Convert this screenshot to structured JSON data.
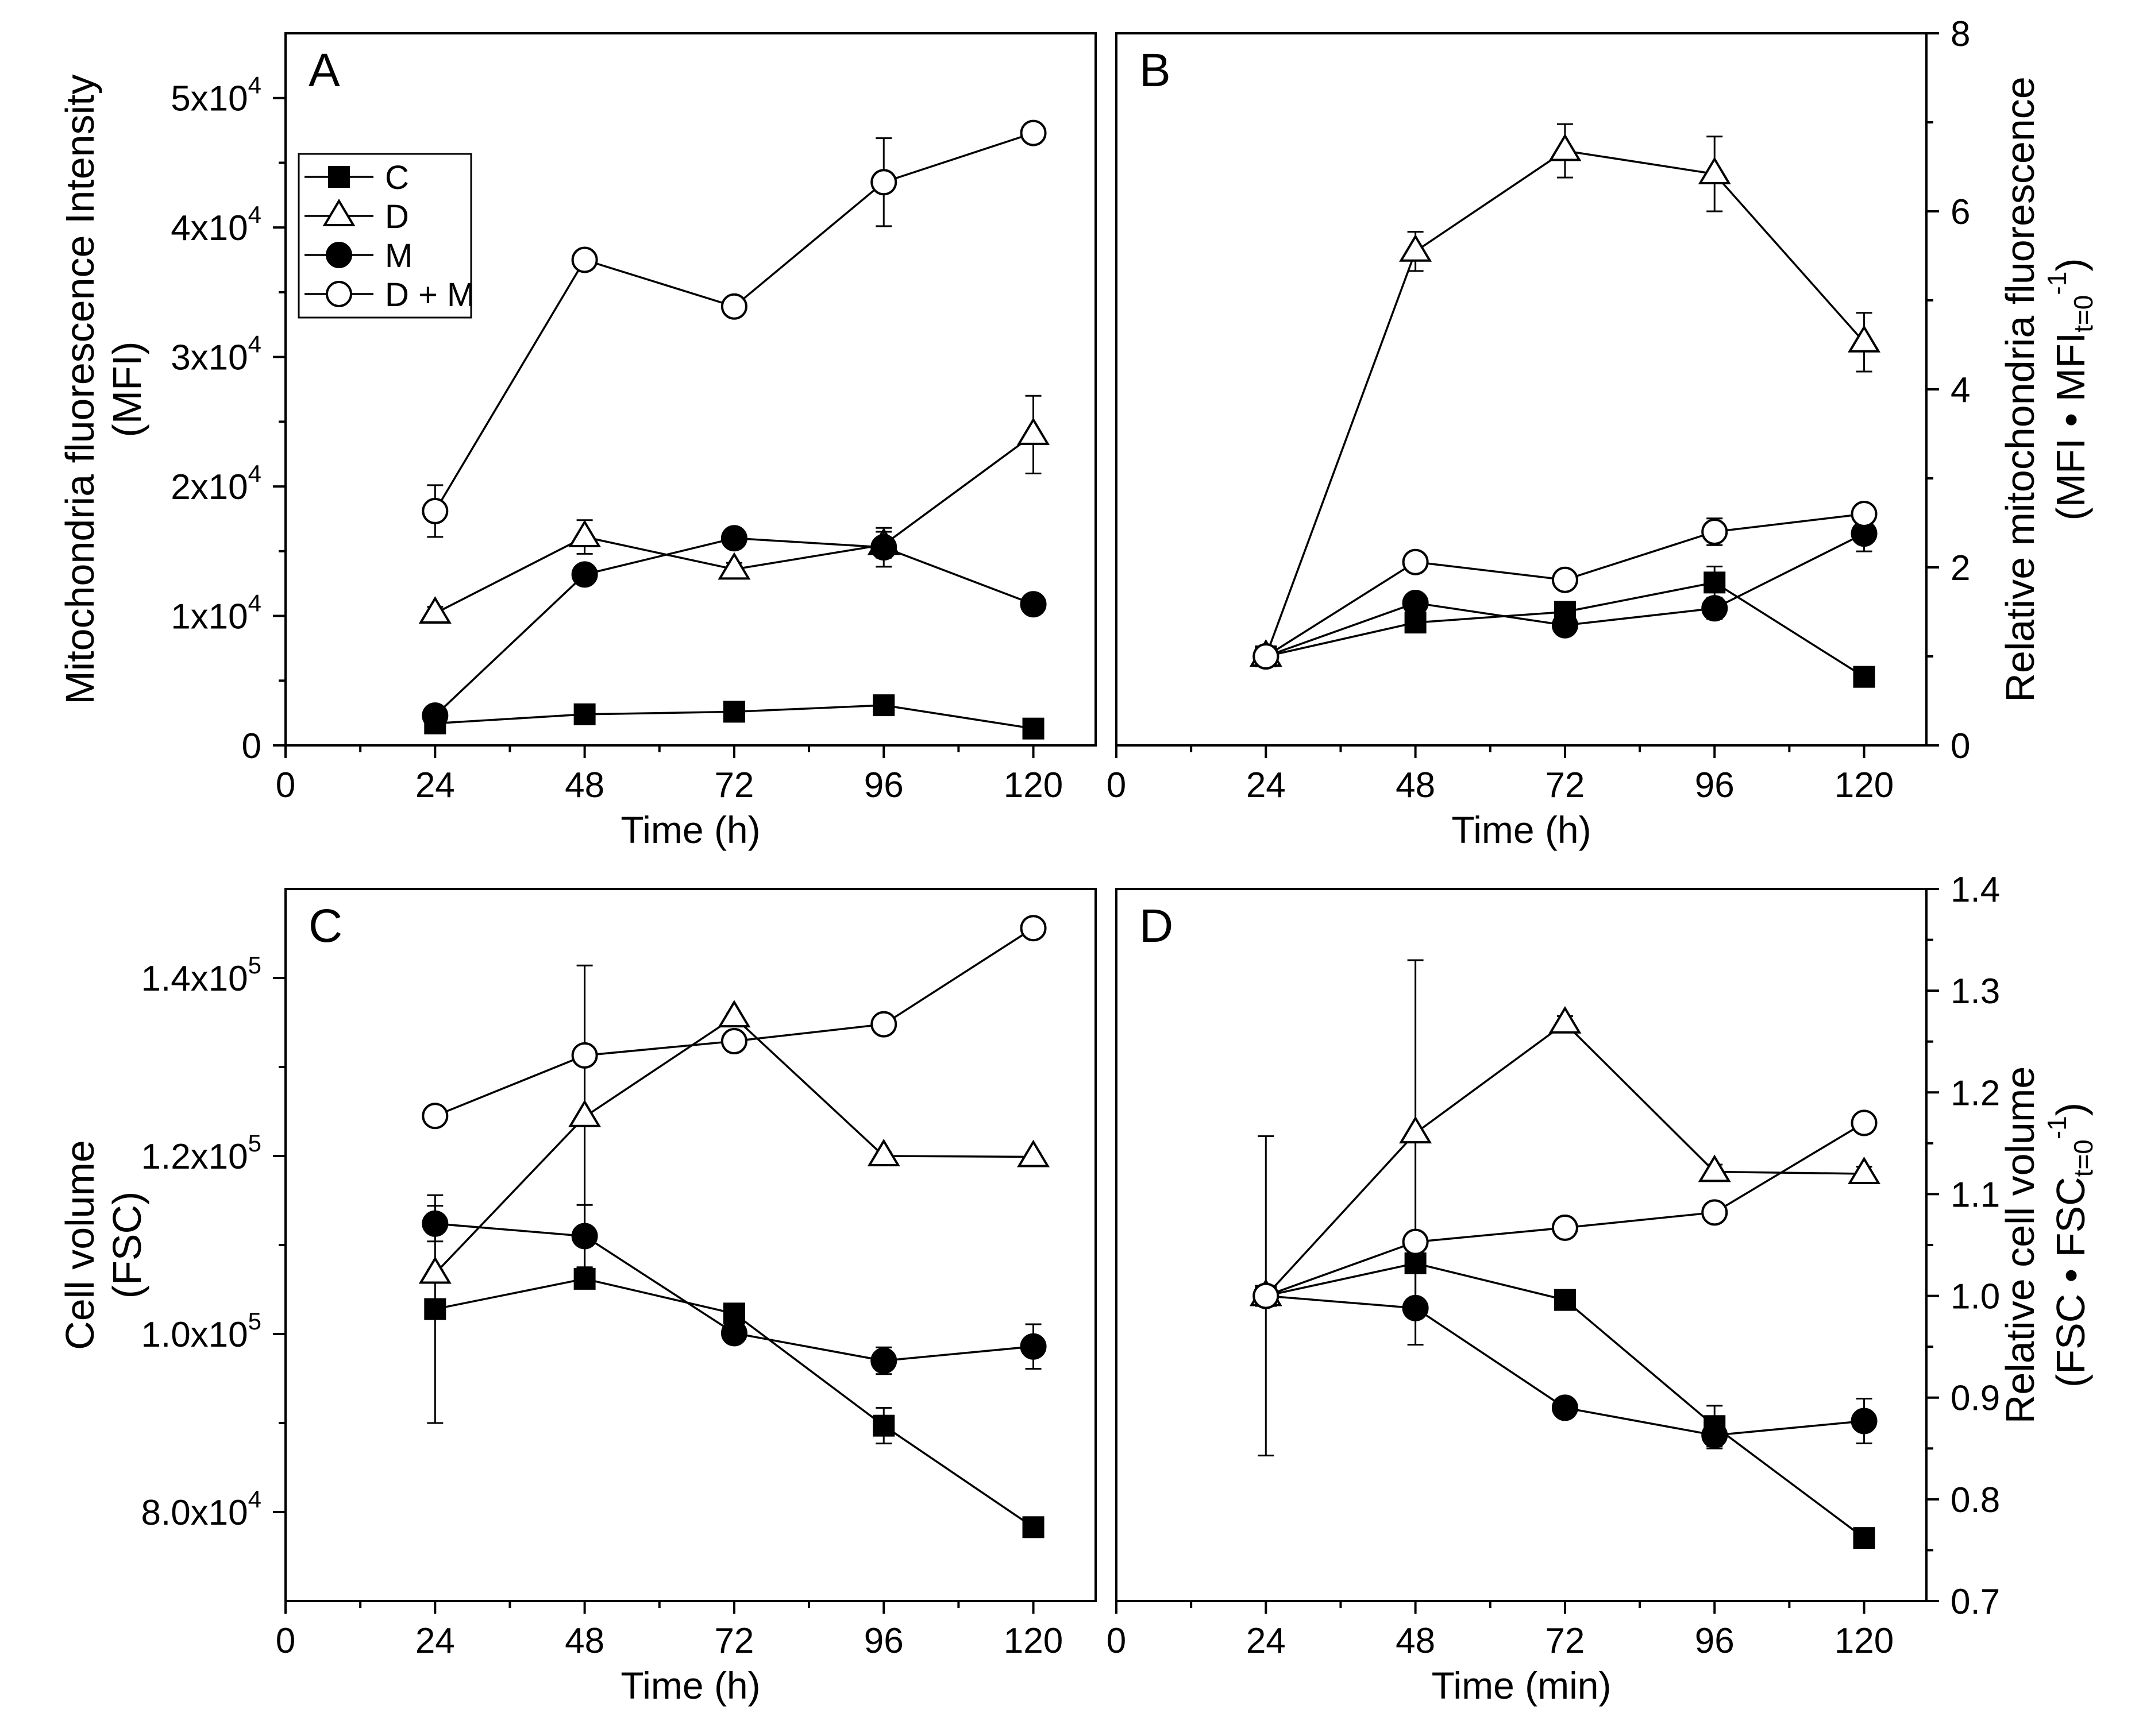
{
  "legend": {
    "entries": [
      {
        "key": "C",
        "label": "C",
        "marker": "square",
        "fill": "#000000"
      },
      {
        "key": "D",
        "label": "D",
        "marker": "triangle",
        "fill": "#ffffff"
      },
      {
        "key": "M",
        "label": "M",
        "marker": "circle",
        "fill": "#000000"
      },
      {
        "key": "DM",
        "label": "D + M",
        "marker": "circle",
        "fill": "#ffffff"
      }
    ]
  },
  "chart_data": [
    {
      "panel": "A",
      "type": "line",
      "title": "A",
      "xlabel": "Time (h)",
      "ylabel_lines": [
        "Mitochondria fluorescence Intensity",
        "(MFI)"
      ],
      "ylabel_side": "left",
      "xlim": [
        0,
        130
      ],
      "ylim": [
        0,
        55000
      ],
      "xticks": [
        0,
        24,
        48,
        72,
        96,
        120
      ],
      "yticks": [
        0,
        10000,
        20000,
        30000,
        40000,
        50000
      ],
      "ytick_labels": [
        {
          "mant": "0",
          "exp": ""
        },
        {
          "mant": "1x10",
          "exp": "4"
        },
        {
          "mant": "2x10",
          "exp": "4"
        },
        {
          "mant": "3x10",
          "exp": "4"
        },
        {
          "mant": "4x10",
          "exp": "4"
        },
        {
          "mant": "5x10",
          "exp": "4"
        }
      ],
      "x": [
        24,
        48,
        72,
        96,
        120
      ],
      "series": [
        {
          "key": "C",
          "name": "C",
          "values": [
            1700,
            2400,
            2600,
            3100,
            1300
          ],
          "errors": [
            150,
            150,
            150,
            150,
            150
          ]
        },
        {
          "key": "D",
          "name": "D",
          "values": [
            10200,
            16100,
            13600,
            15500,
            24000
          ],
          "errors": [
            500,
            1300,
            500,
            1000,
            3000
          ]
        },
        {
          "key": "M",
          "name": "M",
          "values": [
            2300,
            13200,
            16000,
            15300,
            10900
          ],
          "errors": [
            200,
            300,
            300,
            1500,
            300
          ]
        },
        {
          "key": "DM",
          "name": "D + M",
          "values": [
            18100,
            37500,
            33900,
            43500,
            47300
          ],
          "errors": [
            2000,
            700,
            700,
            3400,
            700
          ]
        }
      ]
    },
    {
      "panel": "B",
      "type": "line",
      "title": "B",
      "xlabel": "Time (h)",
      "ylabel_lines": [
        "Relative mitochondria fluorescence"
      ],
      "ylabel_unit": {
        "pre": "(MFI • MFI",
        "sub": "t=0",
        "sup": "-1",
        "post": ")"
      },
      "ylabel_side": "right",
      "xlim": [
        0,
        130
      ],
      "ylim": [
        0,
        8
      ],
      "xticks": [
        0,
        24,
        48,
        72,
        96,
        120
      ],
      "yticks": [
        0,
        2,
        4,
        6,
        8
      ],
      "ytick_labels": [
        {
          "mant": "0",
          "exp": ""
        },
        {
          "mant": "2",
          "exp": ""
        },
        {
          "mant": "4",
          "exp": ""
        },
        {
          "mant": "6",
          "exp": ""
        },
        {
          "mant": "8",
          "exp": ""
        }
      ],
      "x": [
        24,
        48,
        72,
        96,
        120
      ],
      "series": [
        {
          "key": "C",
          "name": "C",
          "values": [
            1.0,
            1.38,
            1.5,
            1.83,
            0.77
          ],
          "errors": [
            0.1,
            0.08,
            0.1,
            0.18,
            0.05
          ]
        },
        {
          "key": "D",
          "name": "D",
          "values": [
            1.0,
            5.55,
            6.68,
            6.42,
            4.53
          ],
          "errors": [
            0.1,
            0.22,
            0.3,
            0.42,
            0.33
          ]
        },
        {
          "key": "M",
          "name": "M",
          "values": [
            1.0,
            1.6,
            1.35,
            1.54,
            2.38
          ],
          "errors": [
            0.1,
            0.08,
            0.05,
            0.12,
            0.2
          ]
        },
        {
          "key": "DM",
          "name": "D + M",
          "values": [
            1.0,
            2.06,
            1.86,
            2.4,
            2.6
          ],
          "errors": [
            0.1,
            0.08,
            0.08,
            0.15,
            0.08
          ]
        }
      ]
    },
    {
      "panel": "C",
      "type": "line",
      "title": "C",
      "xlabel": "Time (h)",
      "ylabel_lines": [
        "Cell volume",
        "(FSC)"
      ],
      "ylabel_side": "left",
      "xlim": [
        0,
        130
      ],
      "ylim": [
        70000,
        150000
      ],
      "xticks": [
        0,
        24,
        48,
        72,
        96,
        120
      ],
      "yticks": [
        80000,
        100000,
        120000,
        140000
      ],
      "ytick_labels": [
        {
          "mant": "8.0x10",
          "exp": "4"
        },
        {
          "mant": "1.0x10",
          "exp": "5"
        },
        {
          "mant": "1.2x10",
          "exp": "5"
        },
        {
          "mant": "1.4x10",
          "exp": "5"
        }
      ],
      "x": [
        24,
        48,
        72,
        96,
        120
      ],
      "series": [
        {
          "key": "C",
          "name": "C",
          "values": [
            102800,
            106200,
            102300,
            89700,
            78300
          ],
          "errors": [
            12800,
            400,
            400,
            2000,
            400
          ]
        },
        {
          "key": "D",
          "name": "D",
          "values": [
            106800,
            124400,
            135600,
            120000,
            119900
          ],
          "errors": [
            400,
            17000,
            400,
            400,
            400
          ]
        },
        {
          "key": "M",
          "name": "M",
          "values": [
            112400,
            111000,
            100100,
            97000,
            98600
          ],
          "errors": [
            2000,
            3500,
            400,
            1500,
            2500
          ]
        },
        {
          "key": "DM",
          "name": "D + M",
          "values": [
            124500,
            131300,
            132900,
            134800,
            145600
          ],
          "errors": [
            700,
            700,
            700,
            700,
            700
          ]
        }
      ]
    },
    {
      "panel": "D",
      "type": "line",
      "title": "D",
      "xlabel": "Time (min)",
      "ylabel_lines": [
        "Relative cell volume"
      ],
      "ylabel_unit": {
        "pre": "(FSC • FSC",
        "sub": "t=0",
        "sup": "-1",
        "post": ")"
      },
      "ylabel_side": "right",
      "xlim": [
        0,
        130
      ],
      "ylim": [
        0.7,
        1.4
      ],
      "xticks": [
        0,
        24,
        48,
        72,
        96,
        120
      ],
      "yticks": [
        0.7,
        0.8,
        0.9,
        1.0,
        1.1,
        1.2,
        1.3,
        1.4
      ],
      "ytick_labels": [
        {
          "mant": "0.7",
          "exp": ""
        },
        {
          "mant": "0.8",
          "exp": ""
        },
        {
          "mant": "0.9",
          "exp": ""
        },
        {
          "mant": "1.0",
          "exp": ""
        },
        {
          "mant": "1.1",
          "exp": ""
        },
        {
          "mant": "1.2",
          "exp": ""
        },
        {
          "mant": "1.3",
          "exp": ""
        },
        {
          "mant": "1.4",
          "exp": ""
        }
      ],
      "x": [
        24,
        48,
        72,
        96,
        120
      ],
      "series": [
        {
          "key": "C",
          "name": "C",
          "values": [
            1.0,
            1.032,
            0.996,
            0.872,
            0.762
          ],
          "errors": [
            0.157,
            0.005,
            0.005,
            0.02,
            0.005
          ]
        },
        {
          "key": "D",
          "name": "D",
          "values": [
            1.0,
            1.16,
            1.268,
            1.122,
            1.12
          ],
          "errors": [
            0.01,
            0.17,
            0.007,
            0.007,
            0.007
          ]
        },
        {
          "key": "M",
          "name": "M",
          "values": [
            1.0,
            0.988,
            0.89,
            0.863,
            0.877
          ],
          "errors": [
            0.01,
            0.036,
            0.005,
            0.013,
            0.022
          ]
        },
        {
          "key": "DM",
          "name": "D + M",
          "values": [
            1.0,
            1.053,
            1.067,
            1.082,
            1.17
          ],
          "errors": [
            0.01,
            0.006,
            0.006,
            0.006,
            0.006
          ]
        }
      ]
    }
  ]
}
